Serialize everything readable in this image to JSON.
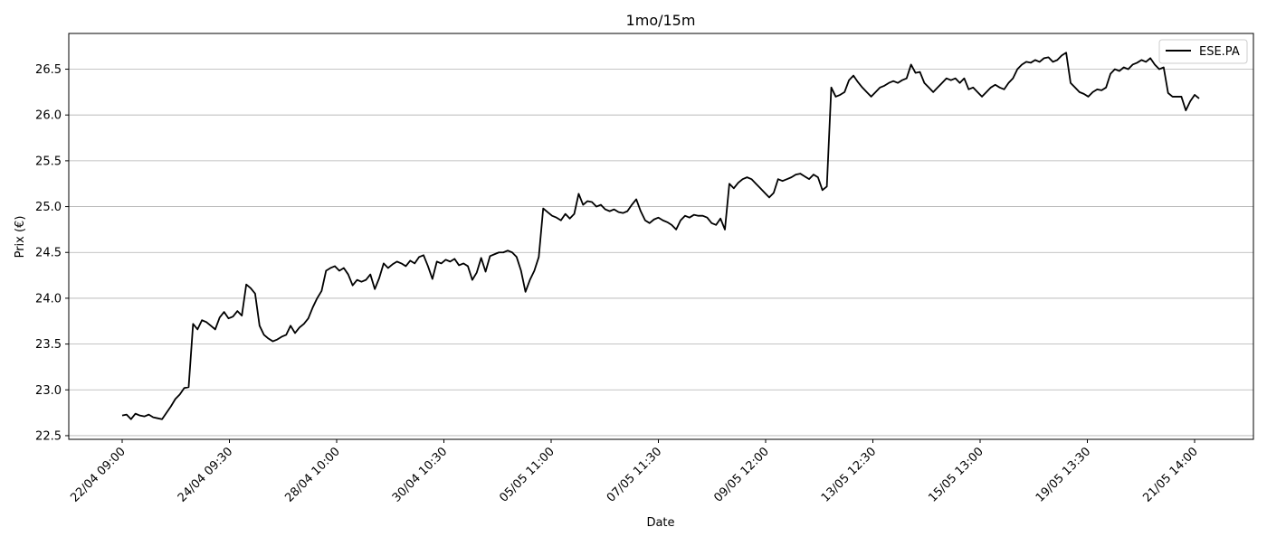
{
  "chart_data": {
    "type": "line",
    "title": "1mo/15m",
    "xlabel": "Date",
    "ylabel": "Prix (€)",
    "grid": "horizontal",
    "legend_position": "top-right",
    "ylim": [
      22.46,
      26.89
    ],
    "y_ticks": [
      22.5,
      23.0,
      23.5,
      24.0,
      24.5,
      25.0,
      25.5,
      26.0,
      26.5
    ],
    "x_ticks": [
      "22/04 09:00",
      "24/04 09:30",
      "28/04 10:00",
      "30/04 10:30",
      "05/05 11:00",
      "07/05 11:30",
      "09/05 12:00",
      "13/05 12:30",
      "15/05 13:00",
      "19/05 13:30",
      "21/05 14:00"
    ],
    "series": [
      {
        "name": "ESE.PA",
        "color": "#000000",
        "x_range": [
          "22/04 09:00",
          "21/05 14:00"
        ],
        "values": [
          22.72,
          22.73,
          22.68,
          22.74,
          22.72,
          22.71,
          22.73,
          22.7,
          22.69,
          22.68,
          22.75,
          22.82,
          22.9,
          22.95,
          23.02,
          23.03,
          23.72,
          23.66,
          23.76,
          23.74,
          23.7,
          23.66,
          23.79,
          23.85,
          23.78,
          23.8,
          23.86,
          23.81,
          24.15,
          24.11,
          24.05,
          23.7,
          23.6,
          23.56,
          23.53,
          23.55,
          23.58,
          23.6,
          23.7,
          23.62,
          23.68,
          23.72,
          23.78,
          23.9,
          24.0,
          24.08,
          24.3,
          24.33,
          24.35,
          24.3,
          24.33,
          24.26,
          24.14,
          24.2,
          24.18,
          24.2,
          24.26,
          24.1,
          24.22,
          24.38,
          24.33,
          24.37,
          24.4,
          24.38,
          24.35,
          24.41,
          24.38,
          24.45,
          24.47,
          24.35,
          24.21,
          24.4,
          24.38,
          24.42,
          24.4,
          24.43,
          24.36,
          24.38,
          24.35,
          24.2,
          24.28,
          24.44,
          24.29,
          24.46,
          24.48,
          24.5,
          24.5,
          24.52,
          24.5,
          24.45,
          24.3,
          24.07,
          24.2,
          24.3,
          24.45,
          24.98,
          24.94,
          24.9,
          24.88,
          24.85,
          24.92,
          24.87,
          24.92,
          25.14,
          25.02,
          25.06,
          25.05,
          25.0,
          25.02,
          24.97,
          24.95,
          24.97,
          24.94,
          24.93,
          24.95,
          25.02,
          25.08,
          24.95,
          24.85,
          24.82,
          24.86,
          24.88,
          24.85,
          24.83,
          24.8,
          24.75,
          24.85,
          24.9,
          24.88,
          24.91,
          24.9,
          24.9,
          24.88,
          24.82,
          24.8,
          24.87,
          24.75,
          25.25,
          25.2,
          25.26,
          25.3,
          25.32,
          25.3,
          25.25,
          25.2,
          25.15,
          25.1,
          25.15,
          25.3,
          25.28,
          25.3,
          25.32,
          25.35,
          25.36,
          25.33,
          25.3,
          25.35,
          25.32,
          25.18,
          25.22,
          26.3,
          26.2,
          26.22,
          26.25,
          26.38,
          26.43,
          26.36,
          26.3,
          26.25,
          26.2,
          26.25,
          26.3,
          26.32,
          26.35,
          26.37,
          26.35,
          26.38,
          26.4,
          26.55,
          26.46,
          26.47,
          26.35,
          26.3,
          26.25,
          26.3,
          26.35,
          26.4,
          26.38,
          26.4,
          26.35,
          26.4,
          26.28,
          26.3,
          26.25,
          26.2,
          26.25,
          26.3,
          26.33,
          26.3,
          26.28,
          26.35,
          26.4,
          26.5,
          26.55,
          26.58,
          26.57,
          26.6,
          26.58,
          26.62,
          26.63,
          26.58,
          26.6,
          26.65,
          26.68,
          26.35,
          26.3,
          26.25,
          26.23,
          26.2,
          26.25,
          26.28,
          26.27,
          26.3,
          26.45,
          26.5,
          26.48,
          26.52,
          26.5,
          26.55,
          26.57,
          26.6,
          26.58,
          26.62,
          26.55,
          26.5,
          26.52,
          26.24,
          26.2,
          26.2,
          26.2,
          26.05,
          26.15,
          26.22,
          26.18
        ]
      }
    ]
  }
}
